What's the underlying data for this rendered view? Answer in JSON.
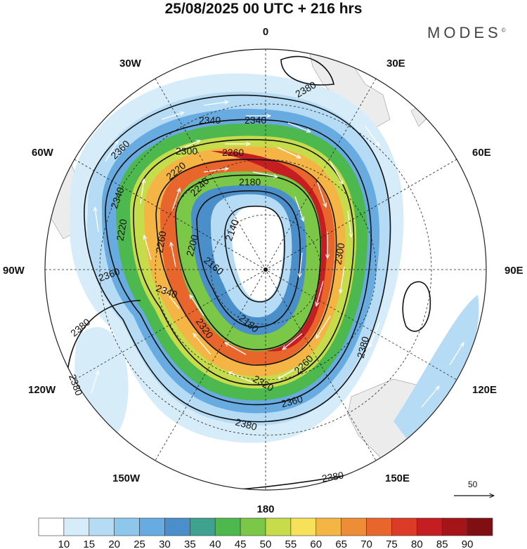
{
  "header": {
    "title": "25/08/2025  00 UTC  + 216 hrs",
    "brand": "MODES",
    "brand_mark": "©"
  },
  "map": {
    "projection": "polar-stereographic-south",
    "longitude_labels": {
      "0": "0",
      "30E": "30E",
      "60E": "60E",
      "90E": "90E",
      "120E": "120E",
      "150E": "150E",
      "180": "180",
      "150W": "150W",
      "120W": "120W",
      "90W": "90W",
      "60W": "60W",
      "30W": "30W"
    },
    "contour_labels": [
      "2380",
      "2340",
      "2340",
      "2360",
      "2300",
      "2260",
      "2340",
      "2180",
      "2220",
      "2240",
      "2220",
      "2140",
      "2260",
      "2200",
      "2160",
      "2300",
      "2360",
      "2340",
      "2180",
      "2320",
      "2260",
      "2360",
      "2380",
      "2320",
      "2380",
      "2380",
      "2380",
      "2380"
    ]
  },
  "reference_vector": {
    "label": "50"
  },
  "colorbar": {
    "colors": [
      "#ffffff",
      "#d6ecf9",
      "#b5dcf4",
      "#8dc7ec",
      "#67abe0",
      "#4a8fca",
      "#3fa290",
      "#4db84d",
      "#7bc748",
      "#c6dc4a",
      "#f7e15a",
      "#f4b545",
      "#ee8d37",
      "#e8652c",
      "#dc3b27",
      "#c41e23",
      "#a51419",
      "#7f0f12"
    ],
    "labels": [
      "10",
      "15",
      "20",
      "25",
      "30",
      "35",
      "40",
      "45",
      "50",
      "55",
      "60",
      "65",
      "70",
      "75",
      "80",
      "85",
      "90"
    ]
  }
}
